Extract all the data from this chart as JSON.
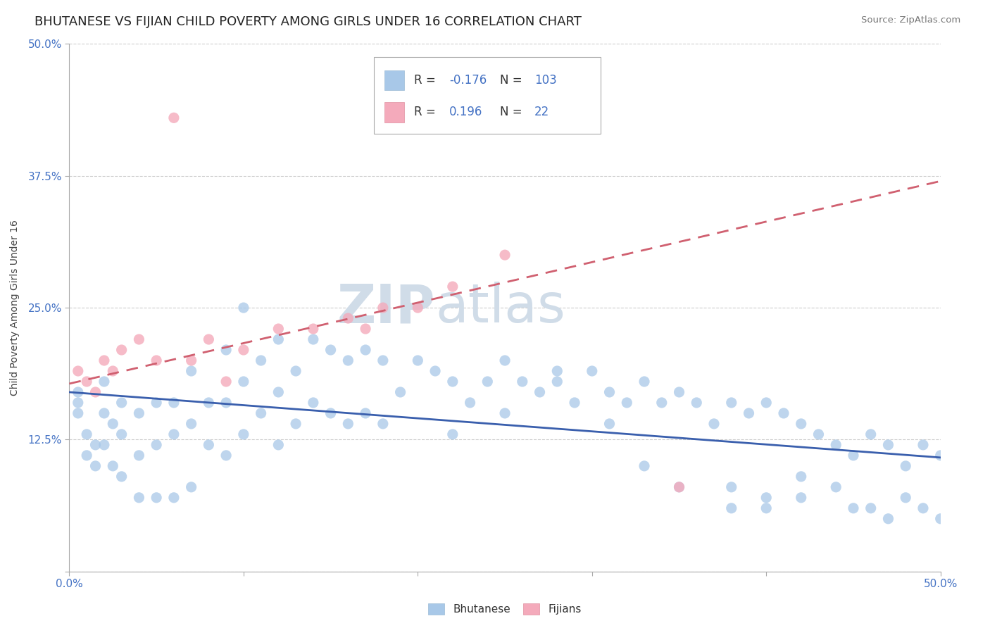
{
  "title": "BHUTANESE VS FIJIAN CHILD POVERTY AMONG GIRLS UNDER 16 CORRELATION CHART",
  "source": "Source: ZipAtlas.com",
  "ylabel": "Child Poverty Among Girls Under 16",
  "xlim": [
    0.0,
    0.5
  ],
  "ylim": [
    0.0,
    0.5
  ],
  "xticks": [
    0.0,
    0.1,
    0.2,
    0.3,
    0.4,
    0.5
  ],
  "xtick_labels_show": [
    "0.0%",
    "",
    "",
    "",
    "",
    "50.0%"
  ],
  "yticks": [
    0.0,
    0.125,
    0.25,
    0.375,
    0.5
  ],
  "ytick_labels": [
    "",
    "12.5%",
    "25.0%",
    "37.5%",
    "50.0%"
  ],
  "blue_scatter_color": "#A8C8E8",
  "pink_scatter_color": "#F4AABB",
  "blue_line_color": "#3A5FAD",
  "pink_line_color": "#D06070",
  "grid_color": "#CCCCCC",
  "bg_color": "#FFFFFF",
  "watermark_zip": "ZIP",
  "watermark_atlas": "atlas",
  "watermark_color": "#D0DCE8",
  "r_blue": "-0.176",
  "n_blue": "103",
  "r_pink": "0.196",
  "n_pink": "22",
  "blue_label": "Bhutanese",
  "pink_label": "Fijians",
  "value_color": "#4472C4",
  "title_fontsize": 13,
  "axis_tick_color": "#4472C4",
  "blue_trendline_start_y": 0.17,
  "blue_trendline_end_y": 0.108,
  "pink_trendline_start_y": 0.178,
  "pink_trendline_end_y": 0.37,
  "blue_scatter_x": [
    0.005,
    0.005,
    0.005,
    0.01,
    0.01,
    0.015,
    0.015,
    0.02,
    0.02,
    0.02,
    0.025,
    0.025,
    0.03,
    0.03,
    0.03,
    0.04,
    0.04,
    0.04,
    0.05,
    0.05,
    0.05,
    0.06,
    0.06,
    0.06,
    0.07,
    0.07,
    0.07,
    0.08,
    0.08,
    0.09,
    0.09,
    0.09,
    0.1,
    0.1,
    0.1,
    0.11,
    0.11,
    0.12,
    0.12,
    0.12,
    0.13,
    0.13,
    0.14,
    0.14,
    0.15,
    0.15,
    0.16,
    0.16,
    0.17,
    0.17,
    0.18,
    0.18,
    0.19,
    0.2,
    0.21,
    0.22,
    0.22,
    0.23,
    0.24,
    0.25,
    0.25,
    0.26,
    0.27,
    0.28,
    0.29,
    0.3,
    0.31,
    0.31,
    0.32,
    0.33,
    0.34,
    0.35,
    0.36,
    0.37,
    0.38,
    0.39,
    0.4,
    0.41,
    0.42,
    0.43,
    0.44,
    0.45,
    0.46,
    0.47,
    0.48,
    0.49,
    0.5,
    0.33,
    0.35,
    0.38,
    0.4,
    0.42,
    0.44,
    0.46,
    0.48,
    0.38,
    0.4,
    0.42,
    0.45,
    0.47,
    0.49,
    0.5,
    0.28
  ],
  "blue_scatter_y": [
    0.17,
    0.16,
    0.15,
    0.13,
    0.11,
    0.12,
    0.1,
    0.18,
    0.15,
    0.12,
    0.14,
    0.1,
    0.16,
    0.13,
    0.09,
    0.15,
    0.11,
    0.07,
    0.16,
    0.12,
    0.07,
    0.16,
    0.13,
    0.07,
    0.19,
    0.14,
    0.08,
    0.16,
    0.12,
    0.21,
    0.16,
    0.11,
    0.25,
    0.18,
    0.13,
    0.2,
    0.15,
    0.22,
    0.17,
    0.12,
    0.19,
    0.14,
    0.22,
    0.16,
    0.21,
    0.15,
    0.2,
    0.14,
    0.21,
    0.15,
    0.2,
    0.14,
    0.17,
    0.2,
    0.19,
    0.18,
    0.13,
    0.16,
    0.18,
    0.2,
    0.15,
    0.18,
    0.17,
    0.18,
    0.16,
    0.19,
    0.17,
    0.14,
    0.16,
    0.18,
    0.16,
    0.17,
    0.16,
    0.14,
    0.16,
    0.15,
    0.16,
    0.15,
    0.14,
    0.13,
    0.12,
    0.11,
    0.13,
    0.12,
    0.1,
    0.12,
    0.11,
    0.1,
    0.08,
    0.08,
    0.07,
    0.09,
    0.08,
    0.06,
    0.07,
    0.06,
    0.06,
    0.07,
    0.06,
    0.05,
    0.06,
    0.05,
    0.19
  ],
  "pink_scatter_x": [
    0.005,
    0.01,
    0.015,
    0.02,
    0.025,
    0.03,
    0.04,
    0.05,
    0.06,
    0.07,
    0.08,
    0.09,
    0.1,
    0.12,
    0.14,
    0.16,
    0.17,
    0.18,
    0.2,
    0.22,
    0.25,
    0.35
  ],
  "pink_scatter_y": [
    0.19,
    0.18,
    0.17,
    0.2,
    0.19,
    0.21,
    0.22,
    0.2,
    0.43,
    0.2,
    0.22,
    0.18,
    0.21,
    0.23,
    0.23,
    0.24,
    0.23,
    0.25,
    0.25,
    0.27,
    0.3,
    0.08
  ]
}
